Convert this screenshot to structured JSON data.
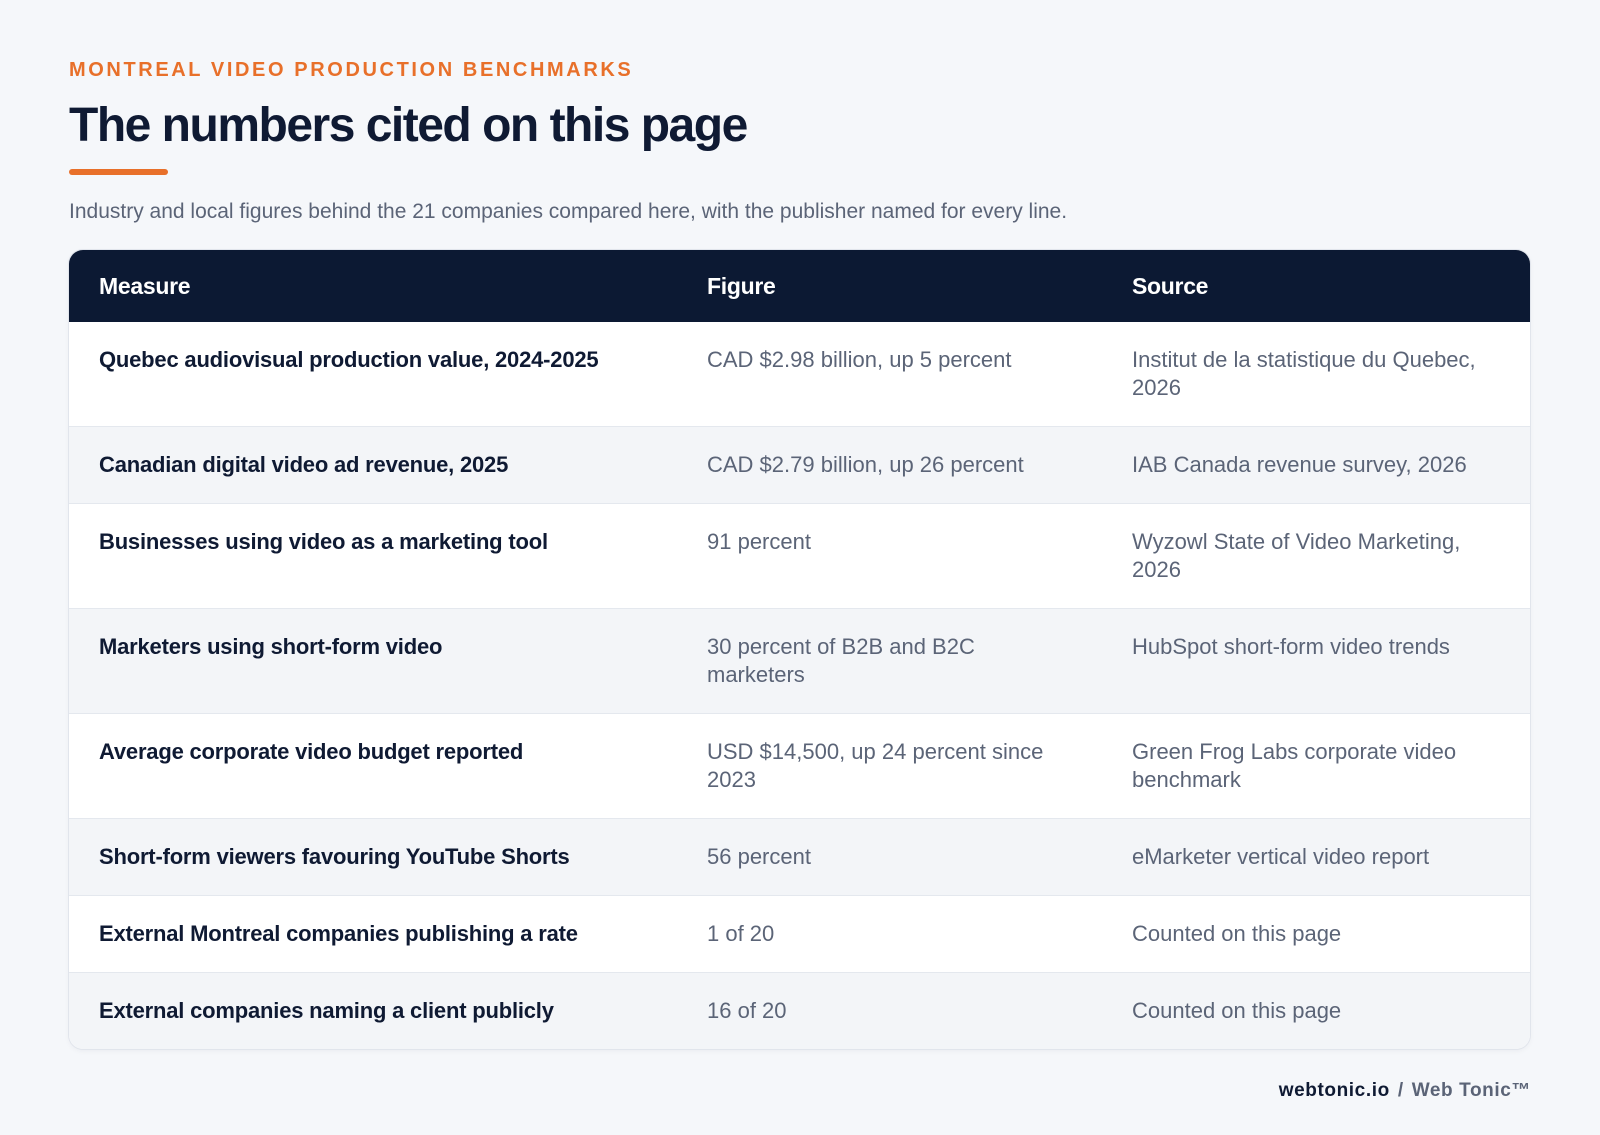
{
  "header": {
    "eyebrow": "MONTREAL VIDEO PRODUCTION BENCHMARKS",
    "title": "The numbers cited on this page",
    "subtitle": "Industry and local figures behind the 21 companies compared here, with the publisher named for every line."
  },
  "table": {
    "columns": [
      "Measure",
      "Figure",
      "Source"
    ],
    "rows": [
      {
        "measure": "Quebec audiovisual production value, 2024-2025",
        "figure": "CAD $2.98 billion, up 5 percent",
        "source": "Institut de la statistique du Quebec, 2026"
      },
      {
        "measure": "Canadian digital video ad revenue, 2025",
        "figure": "CAD $2.79 billion, up 26 percent",
        "source": "IAB Canada revenue survey, 2026"
      },
      {
        "measure": "Businesses using video as a marketing tool",
        "figure": "91 percent",
        "source": "Wyzowl State of Video Marketing, 2026"
      },
      {
        "measure": "Marketers using short-form video",
        "figure": "30 percent of B2B and B2C marketers",
        "source": "HubSpot short-form video trends"
      },
      {
        "measure": "Average corporate video budget reported",
        "figure": "USD $14,500, up 24 percent since 2023",
        "source": "Green Frog Labs corporate video benchmark"
      },
      {
        "measure": "Short-form viewers favouring YouTube Shorts",
        "figure": "56 percent",
        "source": "eMarketer vertical video report"
      },
      {
        "measure": "External Montreal companies publishing a rate",
        "figure": "1 of 20",
        "source": "Counted on this page"
      },
      {
        "measure": "External companies naming a client publicly",
        "figure": "16 of 20",
        "source": "Counted on this page"
      }
    ]
  },
  "footer": {
    "domain": "webtonic.io",
    "separator": "/",
    "brand": "Web Tonic™"
  },
  "colors": {
    "accent": "#e8702a",
    "header_bg": "#0c1933",
    "title_text": "#0f1a33",
    "muted_text": "#5b6477",
    "page_bg": "#f5f7fa",
    "row_alt_bg": "#f3f5f8"
  }
}
